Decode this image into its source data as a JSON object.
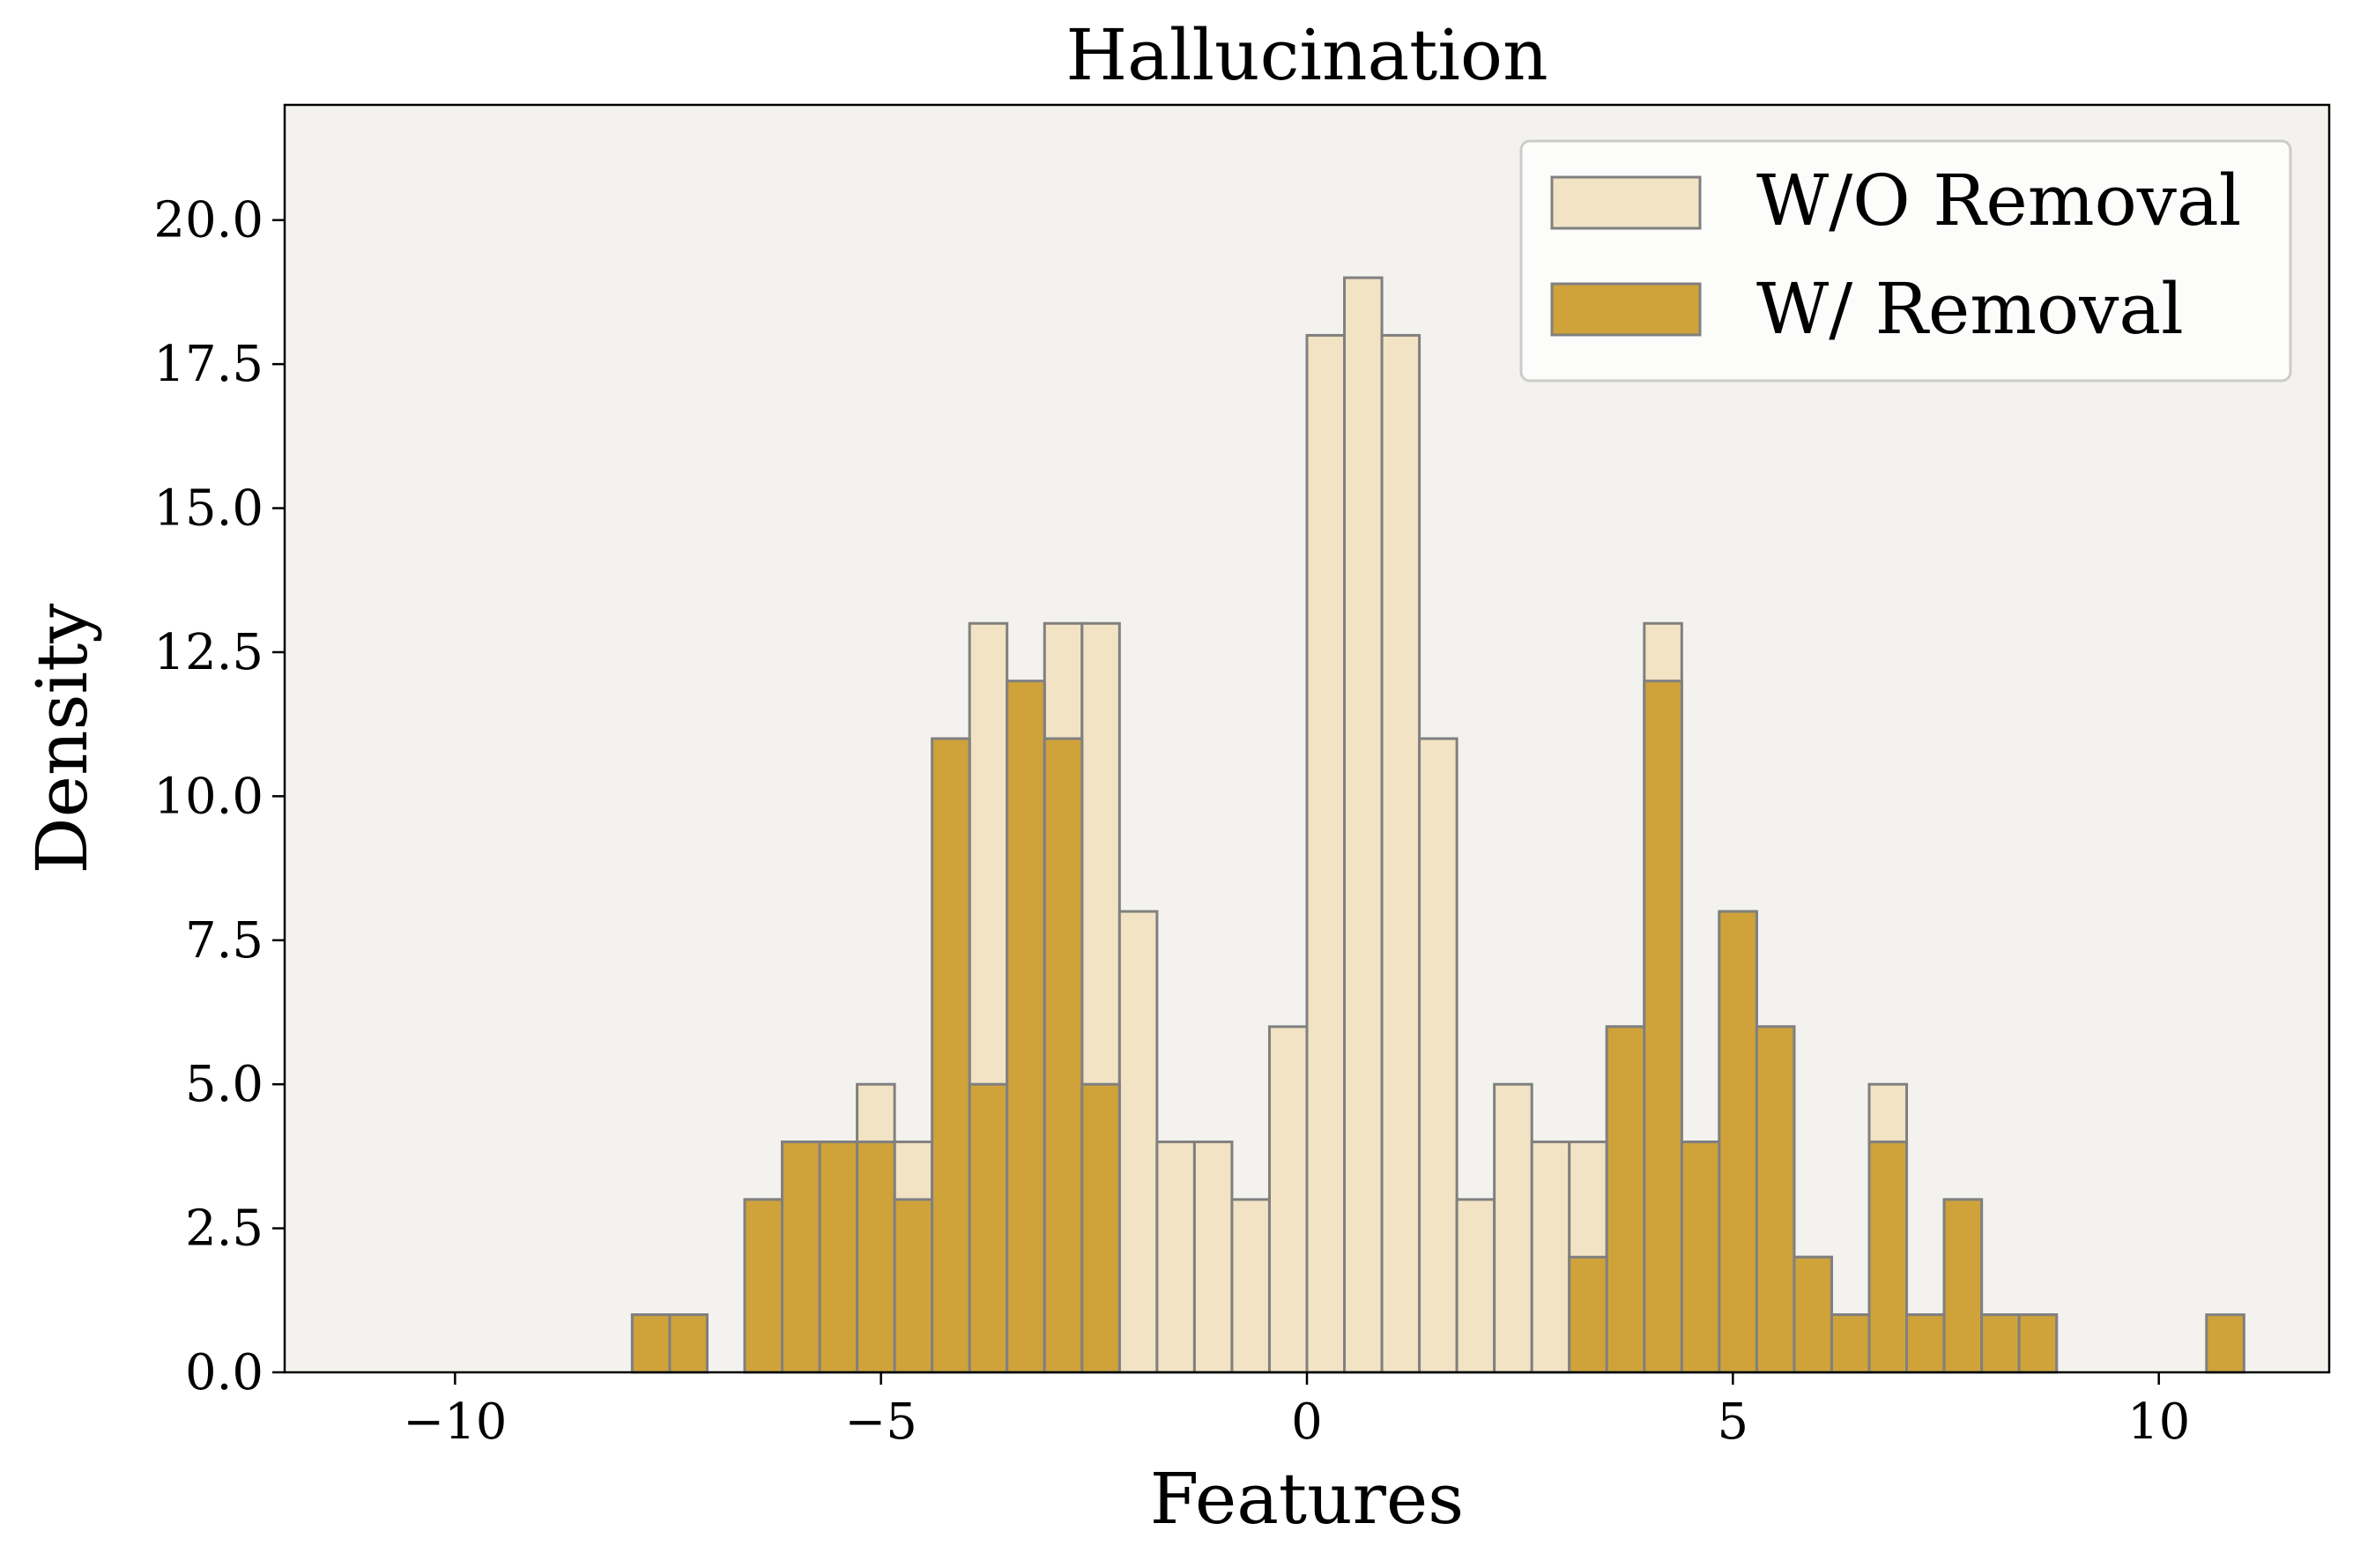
{
  "chart_data": {
    "type": "bar",
    "title": "Hallucination",
    "xlabel": "Features",
    "ylabel": "Density",
    "xlim": [
      -12,
      12
    ],
    "ylim": [
      0,
      22
    ],
    "xticks": [
      -10,
      -5,
      0,
      5,
      10
    ],
    "xtick_labels": [
      "−10",
      "−5",
      "0",
      "5",
      "10"
    ],
    "yticks": [
      0,
      2.5,
      5,
      7.5,
      10,
      12.5,
      15,
      17.5,
      20
    ],
    "ytick_labels": [
      "0.0",
      "2.5",
      "5.0",
      "7.5",
      "10.0",
      "12.5",
      "15.0",
      "17.5",
      "20.0"
    ],
    "bin_start": -11,
    "bin_width": 0.44,
    "grid": false,
    "legend_position": "top-right",
    "plot_background": "#f3f2ee",
    "edge_color": "#808080",
    "series": [
      {
        "name": "W/O Removal",
        "color": "#f2e3c4",
        "values": [
          0,
          0,
          0,
          0,
          0,
          0,
          0,
          1,
          1,
          0,
          3,
          4,
          4,
          5,
          4,
          4,
          13,
          5,
          13,
          13,
          8,
          4,
          4,
          3,
          6,
          18,
          19,
          18,
          11,
          3,
          5,
          4,
          4,
          6,
          13,
          4,
          8,
          6,
          2,
          1,
          5,
          1,
          3,
          1,
          1,
          0,
          0,
          0,
          0,
          0
        ]
      },
      {
        "name": "W/ Removal",
        "color": "#cfa23a",
        "values": [
          0,
          0,
          0,
          0,
          0,
          0,
          0,
          1,
          1,
          0,
          3,
          4,
          4,
          4,
          3,
          11,
          5,
          12,
          11,
          5,
          0,
          0,
          0,
          0,
          0,
          0,
          0,
          0,
          0,
          0,
          0,
          0,
          2,
          6,
          12,
          4,
          8,
          6,
          2,
          1,
          4,
          1,
          3,
          1,
          1,
          0,
          0,
          0,
          0,
          1
        ]
      }
    ]
  }
}
